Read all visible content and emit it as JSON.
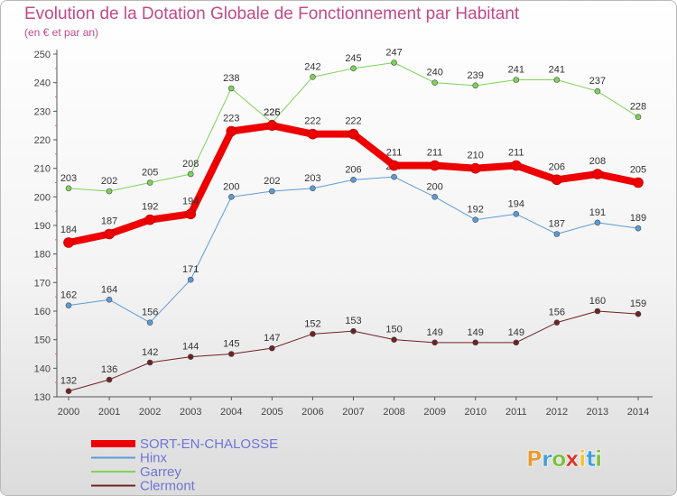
{
  "header": {
    "title": "Evolution de la Dotation Globale de Fonctionnement par Habitant",
    "subtitle": "(en € et par an)"
  },
  "logo": {
    "text": "Proxiti",
    "letters": [
      "P",
      "r",
      "o",
      "x",
      "i",
      "t",
      "i"
    ],
    "colors": [
      "#e89b2f",
      "#3f9fd8",
      "#7bbf3a",
      "#d9342b",
      "#f1c232",
      "#3f9fd8",
      "#7bbf3a"
    ]
  },
  "chart_data": {
    "type": "line",
    "title": "Evolution de la Dotation Globale de Fonctionnement par Habitant",
    "subtitle": "(en € et par an)",
    "xlabel": "",
    "ylabel": "",
    "x": [
      2000,
      2001,
      2002,
      2003,
      2004,
      2005,
      2006,
      2007,
      2008,
      2009,
      2010,
      2011,
      2012,
      2013,
      2014
    ],
    "ylim": [
      130,
      250
    ],
    "yticks": [
      130,
      140,
      150,
      160,
      170,
      180,
      190,
      200,
      210,
      220,
      230,
      240,
      250
    ],
    "grid": false,
    "legend_position": "bottom-left",
    "series": [
      {
        "name": "Garrey",
        "color": "#7ed25a",
        "dot": "#7ed25a",
        "width": 1,
        "values": [
          203,
          202,
          205,
          208,
          238,
          226,
          242,
          245,
          247,
          240,
          239,
          241,
          241,
          237,
          228
        ]
      },
      {
        "name": "Hinx",
        "color": "#5d9bd4",
        "dot": "#5d9bd4",
        "width": 1,
        "values": [
          162,
          164,
          156,
          171,
          200,
          202,
          203,
          206,
          207,
          200,
          192,
          194,
          187,
          191,
          189
        ]
      },
      {
        "name": "Clermont",
        "color": "#6e2222",
        "dot": "#6e2222",
        "width": 1,
        "values": [
          132,
          136,
          142,
          144,
          145,
          147,
          152,
          153,
          150,
          149,
          149,
          149,
          156,
          160,
          159
        ]
      },
      {
        "name": "SORT-EN-CHALOSSE",
        "color": "#ee0000",
        "dot": "#ee0000",
        "width": 8,
        "values": [
          184,
          187,
          192,
          194,
          223,
          225,
          222,
          222,
          211,
          211,
          210,
          211,
          206,
          208,
          205
        ]
      }
    ],
    "legend_order": [
      "SORT-EN-CHALOSSE",
      "Hinx",
      "Garrey",
      "Clermont"
    ]
  }
}
